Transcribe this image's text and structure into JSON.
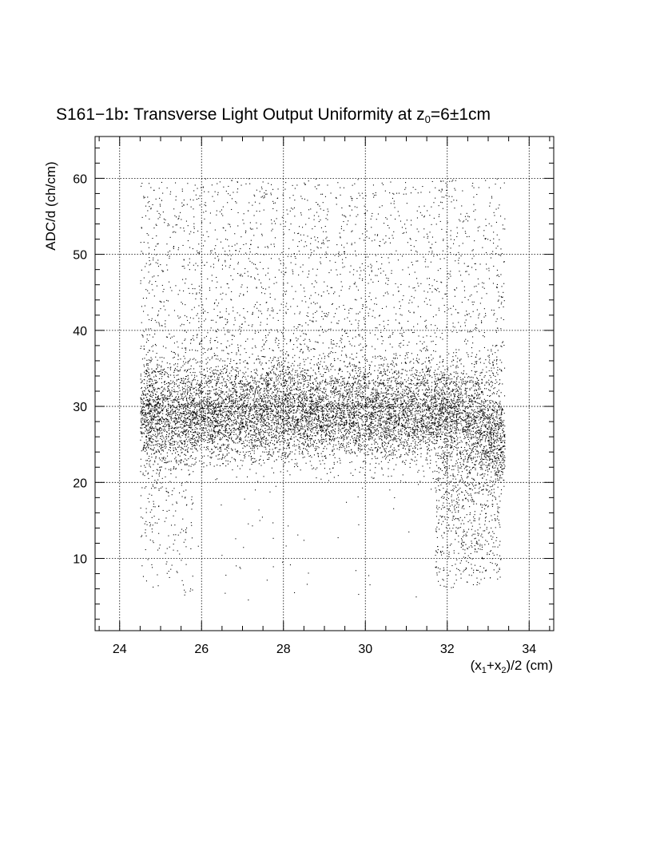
{
  "chart_data": {
    "type": "scatter",
    "title": "S161−1b: Transverse Light Output Uniformity at z₀=6±1cm",
    "title_parts": {
      "prefix": "S161−1b",
      "colon": ":",
      "main": " Transverse Light Output Uniformity at z",
      "subscript": "0",
      "suffix": "=6±1cm"
    },
    "xlabel": "(x₁+x₂)/2 (cm)",
    "xlabel_parts": {
      "p1": "(x",
      "s1": "1",
      "p2": "+x",
      "s2": "2",
      "p3": ")/2 (cm)"
    },
    "ylabel": "ADC/d (ch/cm)",
    "xlim": [
      23.4,
      34.6
    ],
    "ylim": [
      0.5,
      65.5
    ],
    "x_ticks": [
      24,
      26,
      28,
      30,
      32,
      34
    ],
    "y_ticks": [
      10,
      20,
      30,
      40,
      50,
      60
    ],
    "x_tick_labels": [
      "24",
      "26",
      "28",
      "30",
      "32",
      "34"
    ],
    "y_tick_labels": [
      "10",
      "20",
      "30",
      "40",
      "50",
      "60"
    ],
    "grid": true,
    "grid_style": "dotted",
    "marker_color": "#000000",
    "series": [
      {
        "distribution": {
          "description_free": true,
          "core_band": {
            "x_range": [
              24.5,
              33.4
            ],
            "y_center": 29,
            "y_spread": 3,
            "n": 9000
          },
          "upper_tail": {
            "x_range": [
              24.5,
              33.4
            ],
            "y_range": [
              33,
              60
            ],
            "n": 2600
          },
          "lower_left": {
            "x_range": [
              24.5,
              25.8
            ],
            "y_range": [
              5,
              25
            ],
            "n": 250
          },
          "lower_right": {
            "x_range": [
              31.7,
              33.3
            ],
            "y_range": [
              6,
              24
            ],
            "n": 700
          },
          "sparse_low": {
            "x_range": [
              25.8,
              31.7
            ],
            "y_range": [
              4,
              23
            ],
            "n": 60
          }
        }
      }
    ]
  }
}
